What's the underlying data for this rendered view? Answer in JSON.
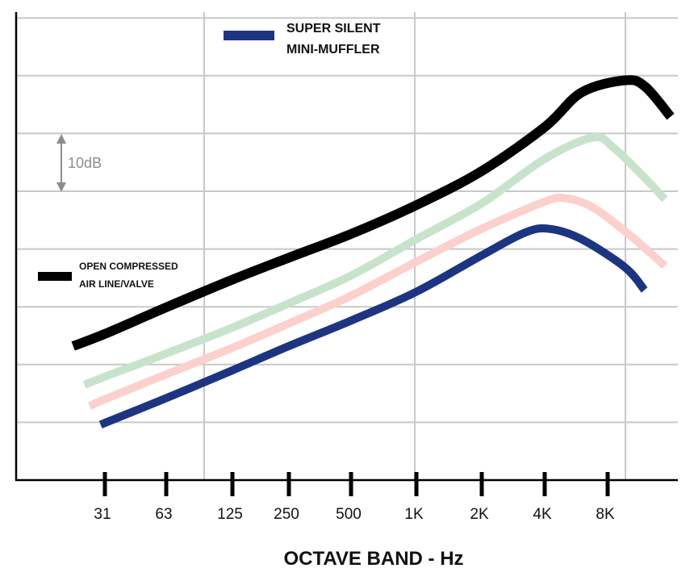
{
  "chart_data": {
    "type": "line",
    "title": "",
    "xlabel": "OCTAVE BAND - Hz",
    "ylabel": "",
    "x_scale": "log (octave bands)",
    "y_unit": "dB (relative, 10 dB per gridline)",
    "ylim": [
      0,
      80
    ],
    "grid": true,
    "x_ticks": [
      {
        "hz": 31.5,
        "label": "31"
      },
      {
        "hz": 63,
        "label": "63"
      },
      {
        "hz": 125,
        "label": "125"
      },
      {
        "hz": 250,
        "label": "250"
      },
      {
        "hz": 500,
        "label": "500"
      },
      {
        "hz": 1000,
        "label": "1K"
      },
      {
        "hz": 2000,
        "label": "2K"
      },
      {
        "hz": 4000,
        "label": "4K"
      },
      {
        "hz": 8000,
        "label": "8K"
      }
    ],
    "scale_annotation": "10dB",
    "legend": [
      {
        "label_lines": [
          "SUPER SILENT",
          "MINI-MUFFLER"
        ],
        "color": "#1d3580",
        "placement": "top-center"
      },
      {
        "label_lines": [
          "OPEN COMPRESSED",
          "AIR LINE/VALVE"
        ],
        "color": "#000000",
        "placement": "middle-left"
      }
    ],
    "series": [
      {
        "name": "OPEN COMPRESSED AIR LINE/VALVE",
        "color": "#000000",
        "x": [
          22,
          31.5,
          63,
          125,
          250,
          500,
          1000,
          2000,
          4000,
          6000,
          9700,
          12100,
          16000
        ],
        "y": [
          23.2,
          25.3,
          29.9,
          34.7,
          38.5,
          42.6,
          47.6,
          53.5,
          61.1,
          67.1,
          69.2,
          68.1,
          62.9
        ]
      },
      {
        "color": "#c8e3cc",
        "x": [
          25,
          31.5,
          63,
          125,
          250,
          500,
          1000,
          2000,
          4000,
          6800,
          8500,
          12200,
          15000
        ],
        "y": [
          16.5,
          17.9,
          21.9,
          26.4,
          30.6,
          35.4,
          41.7,
          47.9,
          55.6,
          59.3,
          57.6,
          52.1,
          48.6
        ]
      },
      {
        "color": "#fcd0cc",
        "x": [
          26.5,
          31.5,
          63,
          125,
          250,
          500,
          1000,
          2000,
          4000,
          5000,
          6800,
          10200,
          15000
        ],
        "y": [
          12.8,
          14.0,
          18.3,
          22.9,
          27.1,
          31.9,
          37.8,
          43.5,
          48.2,
          48.8,
          47.2,
          42.4,
          37.1
        ]
      },
      {
        "name": "SUPER SILENT MINI-MUFFLER",
        "color": "#1d3580",
        "x": [
          30,
          63,
          125,
          250,
          500,
          1000,
          2000,
          3200,
          4200,
          6000,
          9700,
          12000
        ],
        "y": [
          9.6,
          14.2,
          19.0,
          23.2,
          27.6,
          32.6,
          38.9,
          42.8,
          43.5,
          41.7,
          36.8,
          32.9
        ]
      }
    ]
  }
}
